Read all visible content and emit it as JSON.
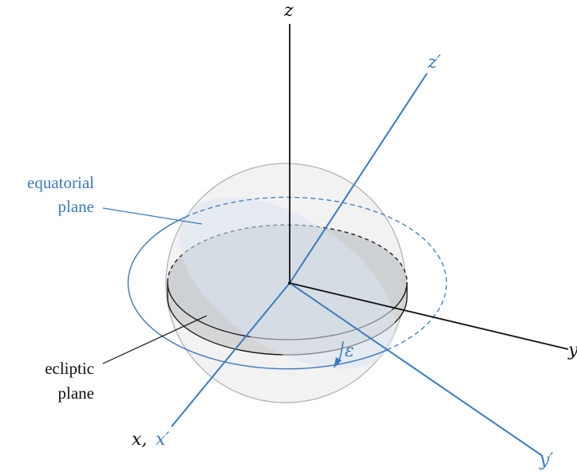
{
  "axes": {
    "z": "z",
    "y": "y",
    "x": "x,",
    "x_prime": "x′",
    "y_prime": "y′",
    "z_prime": "z′"
  },
  "labels": {
    "equatorial_line1": "equatorial",
    "equatorial_line2": "plane",
    "ecliptic_line1": "ecliptic",
    "ecliptic_line2": "plane",
    "epsilon": "ε"
  },
  "colors": {
    "black_axis": "#111111",
    "blue_axis": "#3a7bbf",
    "equatorial_fill": "#dce6f1",
    "ecliptic_fill": "#c8cbcf",
    "sphere_fill": "#eeeeee",
    "sphere_stroke": "#b3b3b3"
  }
}
